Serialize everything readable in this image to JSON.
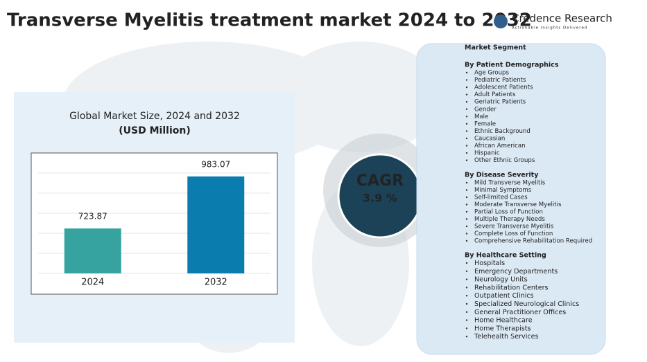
{
  "title": "Transverse Myelitis treatment market  2024  to 2032",
  "logo": {
    "name": "Credence Research",
    "tagline": "Actionable Insights Delivered"
  },
  "chart_data": {
    "type": "bar",
    "title": "Global Market Size, 2024 and 2032",
    "subtitle": "(USD Million)",
    "categories": [
      "2024",
      "2032"
    ],
    "values": [
      723.87,
      983.07
    ],
    "colors": [
      "#36a3a0",
      "#0b7cae"
    ],
    "ylim": [
      500,
      1100
    ],
    "grid": true
  },
  "cagr": {
    "label": "CAGR",
    "value": "3.9 %"
  },
  "segments": {
    "heading": "Market Segment",
    "groups": [
      {
        "title": "By Patient Demographics",
        "items": [
          "Age Groups",
          "Pediatric Patients",
          "Adolescent Patients",
          "Adult Patients",
          "Geriatric Patients",
          "Gender",
          "Male",
          "Female",
          "Ethnic Background",
          "Caucasian",
          "African American",
          "Hispanic",
          "Other Ethnic Groups"
        ]
      },
      {
        "title": "By Disease Severity",
        "items": [
          "Mild Transverse Myelitis",
          "Minimal Symptoms",
          "Self-limited Cases",
          "Moderate Transverse Myelitis",
          "Partial Loss of Function",
          "Multiple Therapy Needs",
          "Severe Transverse Myelitis",
          "Complete Loss of Function",
          "Comprehensive Rehabilitation Required"
        ]
      },
      {
        "title": "By Healthcare Setting",
        "items": [
          "Hospitals",
          "Emergency Departments",
          "Neurology Units",
          "Rehabilitation Centers",
          "Outpatient Clinics",
          "Specialized Neurological Clinics",
          "General Practitioner Offices",
          "Home Healthcare",
          "Home Therapists",
          "Telehealth Services"
        ]
      }
    ]
  }
}
